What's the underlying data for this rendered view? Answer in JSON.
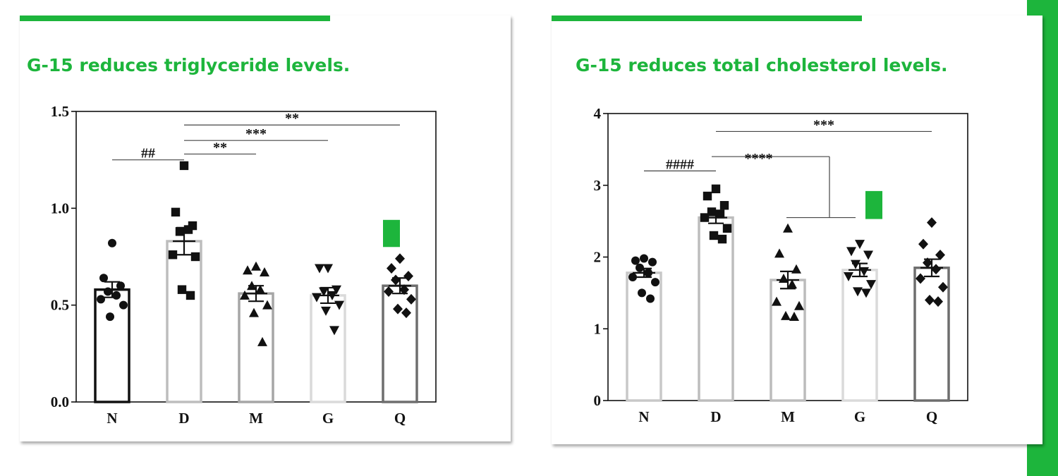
{
  "theme": {
    "accent": "#1db53c"
  },
  "panels": [
    {
      "title": "G-15 reduces triglyceride levels.",
      "chart_data": {
        "type": "bar",
        "categories": [
          "N",
          "D",
          "M",
          "G",
          "Q"
        ],
        "values": [
          0.58,
          0.83,
          0.56,
          0.55,
          0.6
        ],
        "sem": [
          0.04,
          0.07,
          0.04,
          0.04,
          0.04
        ],
        "bar_colors": [
          "#111111",
          "#bdbdbd",
          "#a6a6a6",
          "#dadada",
          "#6e6e6e"
        ],
        "marker_shapes": [
          "circle",
          "square",
          "triangle",
          "triangle-down",
          "diamond"
        ],
        "points": [
          [
            0.82,
            0.64,
            0.6,
            0.57,
            0.55,
            0.53,
            0.5,
            0.44
          ],
          [
            1.22,
            0.98,
            0.91,
            0.88,
            0.89,
            0.76,
            0.75,
            0.58,
            0.55
          ],
          [
            0.7,
            0.68,
            0.67,
            0.6,
            0.58,
            0.55,
            0.5,
            0.46,
            0.31
          ],
          [
            0.69,
            0.69,
            0.58,
            0.57,
            0.55,
            0.54,
            0.5,
            0.47,
            0.37
          ],
          [
            0.74,
            0.69,
            0.65,
            0.63,
            0.58,
            0.57,
            0.53,
            0.48,
            0.46
          ]
        ],
        "ylim": [
          0,
          1.5
        ],
        "yticks": [
          0.0,
          0.5,
          1.0,
          1.5
        ],
        "ytick_labels": [
          "0.0",
          "0.5",
          "1.0",
          "1.5"
        ],
        "xlabel": "",
        "ylabel": "",
        "significance": [
          {
            "from": "N",
            "to": "D",
            "level": 1.25,
            "label": "##"
          },
          {
            "from": "D",
            "to": "M",
            "level": 1.28,
            "label": "**"
          },
          {
            "from": "D",
            "to": "G",
            "level": 1.35,
            "label": "***"
          },
          {
            "from": "D",
            "to": "Q",
            "level": 1.43,
            "label": "**"
          }
        ],
        "marker": {
          "category": "Q",
          "y_range": [
            0.8,
            0.94
          ],
          "color": "#1db53c"
        }
      }
    },
    {
      "title": "G-15 reduces total cholesterol levels.",
      "chart_data": {
        "type": "bar",
        "categories": [
          "N",
          "D",
          "M",
          "G",
          "Q"
        ],
        "values": [
          1.78,
          2.55,
          1.68,
          1.82,
          1.85
        ],
        "sem": [
          0.06,
          0.08,
          0.12,
          0.09,
          0.12
        ],
        "bar_colors": [
          "#c8c8c8",
          "#bdbdbd",
          "#bcbcbc",
          "#dadada",
          "#6e6e6e"
        ],
        "marker_shapes": [
          "circle",
          "square",
          "triangle",
          "triangle-down",
          "diamond"
        ],
        "points": [
          [
            1.98,
            1.95,
            1.93,
            1.85,
            1.78,
            1.72,
            1.65,
            1.5,
            1.42
          ],
          [
            2.95,
            2.85,
            2.72,
            2.63,
            2.6,
            2.55,
            2.4,
            2.3,
            2.25
          ],
          [
            2.4,
            2.05,
            1.83,
            1.7,
            1.62,
            1.38,
            1.32,
            1.18,
            1.17
          ],
          [
            2.18,
            2.08,
            2.03,
            1.9,
            1.8,
            1.73,
            1.62,
            1.52,
            1.5
          ],
          [
            2.48,
            2.18,
            2.03,
            1.92,
            1.83,
            1.7,
            1.58,
            1.4,
            1.38
          ]
        ],
        "ylim": [
          0,
          4
        ],
        "yticks": [
          0,
          1,
          2,
          3,
          4
        ],
        "ytick_labels": [
          "0",
          "1",
          "2",
          "3",
          "4"
        ],
        "xlabel": "",
        "ylabel": "",
        "significance": [
          {
            "from": "N",
            "to": "D",
            "level": 3.2,
            "label": "####"
          },
          {
            "from": "D",
            "to": "M+G+Q",
            "level": 3.4,
            "label": "****",
            "bracket": true,
            "drop_to": 2.55,
            "sub_from": "M",
            "sub_to": "G"
          },
          {
            "from": "D",
            "to": "Q",
            "level": 3.75,
            "label": "***"
          }
        ],
        "marker": {
          "category": "G",
          "y_range": [
            2.53,
            2.92
          ],
          "color": "#1db53c"
        }
      }
    }
  ]
}
